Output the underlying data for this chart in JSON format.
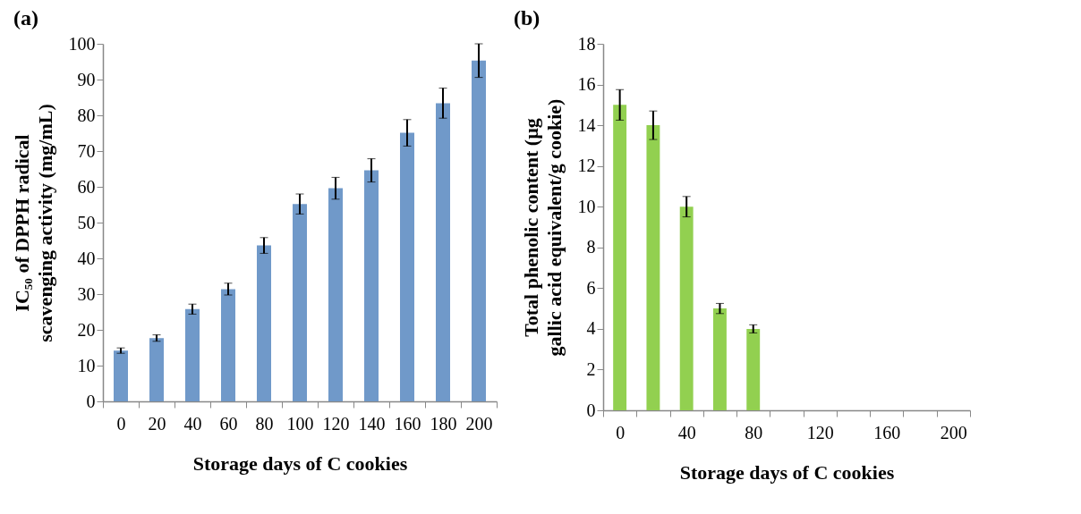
{
  "chart_data": [
    {
      "type": "bar",
      "title": "(a)",
      "xlabel": "Storage days of C cookies",
      "ylabel": "IC₅₀ of DPPH radical scavenging activity (mg/mL)",
      "categories": [
        "0",
        "20",
        "40",
        "60",
        "80",
        "100",
        "120",
        "140",
        "160",
        "180",
        "200"
      ],
      "values": [
        14.2,
        17.7,
        25.8,
        31.4,
        43.6,
        55.2,
        59.6,
        64.6,
        75.1,
        83.4,
        95.3
      ],
      "errors": [
        0.75,
        0.9,
        1.4,
        1.65,
        2.2,
        2.8,
        3.05,
        3.25,
        3.7,
        4.2,
        4.7
      ],
      "color": "#7099c9",
      "ylim": [
        0,
        100
      ],
      "yticks": [
        0,
        10,
        20,
        30,
        40,
        50,
        60,
        70,
        80,
        90,
        100
      ]
    },
    {
      "type": "bar",
      "title": "(b)",
      "xlabel": "Storage days of C cookies",
      "ylabel": "Total phenolic content (µg gallic acid equivalent/g cookie)",
      "categories": [
        "0",
        null,
        "40",
        null,
        "80",
        null,
        "120",
        null,
        "160",
        null,
        "200"
      ],
      "values": [
        15.0,
        14.0,
        10.0,
        5.0,
        4.0,
        0,
        0,
        0,
        0,
        0,
        0
      ],
      "errors": [
        0.75,
        0.7,
        0.5,
        0.25,
        0.2,
        null,
        null,
        null,
        null,
        null,
        null
      ],
      "color": "#92d050",
      "ylim": [
        0,
        18
      ],
      "yticks": [
        0,
        2,
        4,
        6,
        8,
        10,
        12,
        14,
        16,
        18
      ]
    }
  ]
}
